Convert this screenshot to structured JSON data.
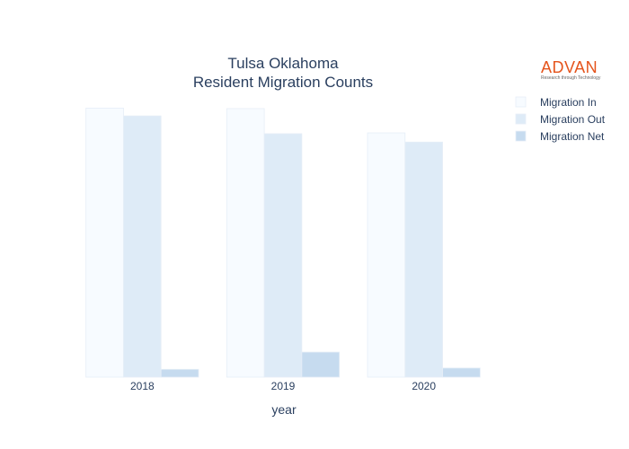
{
  "chart_data": {
    "type": "bar",
    "title": [
      "Tulsa Oklahoma",
      "Resident Migration Counts"
    ],
    "xlabel": "year",
    "ylabel": "",
    "categories": [
      "2018",
      "2019",
      "2020"
    ],
    "series": [
      {
        "name": "Migration In",
        "values": [
          1030,
          1028,
          935
        ],
        "color": "#f7fbff"
      },
      {
        "name": "Migration Out",
        "values": [
          1000,
          932,
          900
        ],
        "color": "#deebf7"
      },
      {
        "name": "Migration Net",
        "values": [
          30,
          96,
          35
        ],
        "color": "#c6dbef"
      }
    ],
    "ylim": [
      0,
      1100
    ],
    "y_ticks_shown": false,
    "grid": false,
    "legend_position": "right"
  },
  "logo": {
    "wordmark": "ADVAN",
    "tagline": "Research through Technology",
    "color": "#e5541c"
  }
}
